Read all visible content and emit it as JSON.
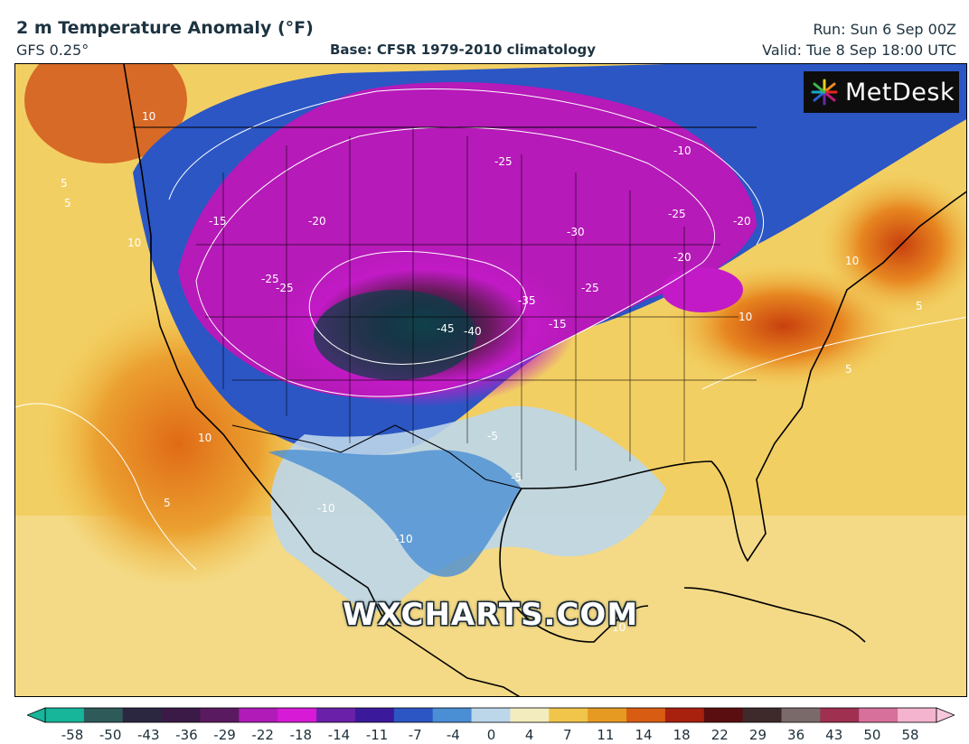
{
  "header": {
    "title": "2 m Temperature Anomaly (°F)",
    "model": "GFS 0.25°",
    "base": "Base: CFSR 1979-2010 climatology",
    "run": "Run: Sun 6 Sep 00Z",
    "valid": "Valid: Tue 8 Sep 18:00 UTC"
  },
  "logo": {
    "text": "MetDesk",
    "icon": "metdesk-star-icon"
  },
  "watermark": "WXCHARTS.COM",
  "colorbar": {
    "ticks": [
      "-58",
      "-50",
      "-43",
      "-36",
      "-29",
      "-22",
      "-18",
      "-14",
      "-11",
      "-7",
      "-4",
      "0",
      "4",
      "7",
      "11",
      "14",
      "18",
      "22",
      "29",
      "36",
      "43",
      "50",
      "58"
    ],
    "colors": [
      "#17b59a",
      "#2e5a5a",
      "#2c2740",
      "#3b1a48",
      "#5a1a60",
      "#b11bb8",
      "#d61ad6",
      "#6a20a8",
      "#3a1a9a",
      "#2b56c4",
      "#4a8ed4",
      "#bcd6ea",
      "#f3ecbf",
      "#f1c44a",
      "#e79a22",
      "#d85d12",
      "#a8200e",
      "#5a0e10",
      "#3e2a2a",
      "#7a6a6a",
      "#a03050",
      "#d7709a",
      "#f4b3cf"
    ]
  },
  "isoline_labels": [
    {
      "text": "-25"
    },
    {
      "text": "-30"
    },
    {
      "text": "-35"
    },
    {
      "text": "-40"
    },
    {
      "text": "-45"
    },
    {
      "text": "-25"
    },
    {
      "text": "-25"
    },
    {
      "text": "-20"
    },
    {
      "text": "-15"
    },
    {
      "text": "-10"
    },
    {
      "text": "-20"
    },
    {
      "text": "-25"
    },
    {
      "text": "-20"
    },
    {
      "text": "-25"
    },
    {
      "text": "-15"
    },
    {
      "text": "-10"
    },
    {
      "text": "-5"
    },
    {
      "text": "-5"
    },
    {
      "text": "-10"
    },
    {
      "text": "5"
    },
    {
      "text": "10"
    },
    {
      "text": "10"
    },
    {
      "text": "5"
    },
    {
      "text": "10"
    },
    {
      "text": "5"
    },
    {
      "text": "10"
    },
    {
      "text": "5"
    },
    {
      "text": "10"
    },
    {
      "text": "5"
    },
    {
      "text": "10"
    }
  ]
}
